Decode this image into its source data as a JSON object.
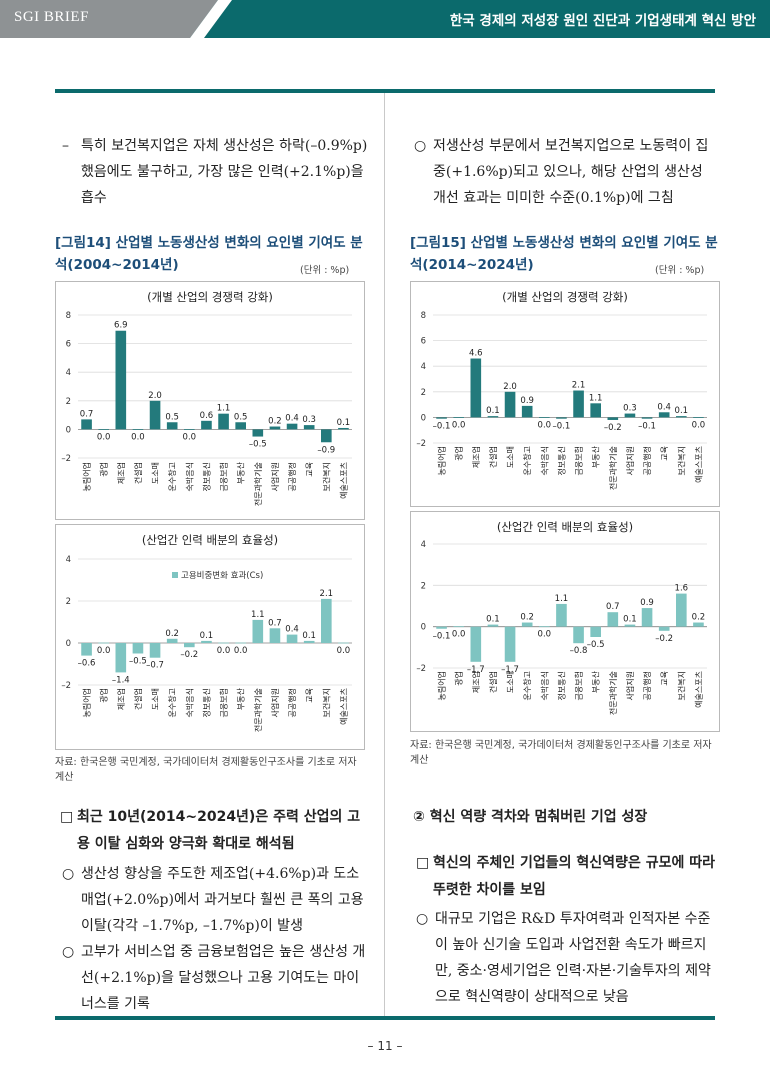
{
  "header": {
    "brand": "SGI BRIEF",
    "title": "한국 경제의 저성장 원인 진단과 기업생태계 혁신 방안"
  },
  "left": {
    "intro_marker": "–",
    "intro": "특히 보건복지업은 자체 생산성은 하락(–0.9%p) 했음에도 불구하고, 가장 많은 인력(+2.1%p)을 흡수",
    "figure_title": "[그림14] 산업별 노동생산성 변화의 요인별 기여도 분석(2004~2014년)",
    "unit": "(단위 : %p)",
    "source": "자료: 한국은행 국민계정, 국가데이터처 경제활동인구조사를 기초로 저자 계산",
    "section_marker": "□",
    "section": "최근 10년(2014~2024년)은 주력 산업의 고용 이탈 심화와 양극화 확대로 해석됨",
    "bullets": [
      {
        "marker": "○",
        "text": "생산성 향상을 주도한 제조업(+4.6%p)과 도소매업(+2.0%p)에서 과거보다 훨씬 큰 폭의 고용 이탈(각각 –1.7%p, –1.7%p)이 발생"
      },
      {
        "marker": "○",
        "text": "고부가 서비스업 중 금융보험업은 높은 생산성 개선(+2.1%p)을 달성했으나 고용 기여도는 마이너스를 기록"
      }
    ]
  },
  "right": {
    "intro_marker": "○",
    "intro": "저생산성 부문에서 보건복지업으로 노동력이 집중(+1.6%p)되고 있으나, 해당 산업의 생산성 개선 효과는 미미한 수준(0.1%p)에 그침",
    "figure_title": "[그림15] 산업별 노동생산성 변화의 요인별 기여도 분석(2014~2024년)",
    "unit": "(단위 : %p)",
    "source": "자료: 한국은행 국민계정, 국가데이터처 경제활동인구조사를 기초로 저자 계산",
    "section": "② 혁신 역량 격차와 멈춰버린 기업 성장",
    "sub_marker": "□",
    "sub": "혁신의 주체인 기업들의 혁신역량은 규모에 따라 뚜렷한 차이를 보임",
    "bullets": [
      {
        "marker": "○",
        "text": "대규모 기업은 R&D 투자여력과 인적자본 수준이 높아 신기술 도입과 사업전환 속도가 빠르지만, 중소·영세기업은 인력·자본·기술투자의 제약으로 혁신역량이 상대적으로 낮음"
      }
    ]
  },
  "page_number": "– 11 –",
  "colors": {
    "bar": "#237a7c",
    "bar_light": "#7ec4c1",
    "teal_dark": "#0b6a6c",
    "title_blue": "#1d4e79"
  },
  "chart_data": [
    {
      "id": "fig14-top",
      "type": "bar",
      "title": "(개별 산업의 경쟁력 강화)",
      "categories": [
        "농림어업",
        "광업",
        "제조업",
        "건설업",
        "도소매",
        "운수창고",
        "숙박음식",
        "정보통신",
        "금융보험",
        "부동산",
        "전문과학기술",
        "사업지원",
        "공공행정",
        "교육",
        "보건복지",
        "예술스포츠"
      ],
      "values": [
        0.7,
        0.0,
        6.9,
        0.0,
        2.0,
        0.5,
        0.0,
        0.6,
        1.1,
        0.5,
        -0.5,
        0.2,
        0.4,
        0.3,
        -0.9,
        0.1
      ],
      "labels": [
        "0.7",
        "0.0",
        "6.9",
        "0.0",
        "2.0",
        "0.5",
        "0.0",
        "0.6",
        "1.1",
        "0.5",
        "–0.5",
        "0.2",
        "0.4",
        "0.3",
        "–0.9",
        "0.1"
      ],
      "yticks": [
        "8",
        "6",
        "4",
        "2",
        "0",
        "–2"
      ],
      "ylim": [
        -2,
        8
      ],
      "color": "#237a7c"
    },
    {
      "id": "fig14-bottom",
      "type": "bar",
      "title": "(산업간 인력 배분의 효율성)",
      "legend": "고용비중변화 효과(Cs)",
      "categories": [
        "농림어업",
        "광업",
        "제조업",
        "건설업",
        "도소매",
        "운수창고",
        "숙박음식",
        "정보통신",
        "금융보험",
        "부동산",
        "전문과학기술",
        "사업지원",
        "공공행정",
        "교육",
        "보건복지",
        "예술스포츠"
      ],
      "values": [
        -0.6,
        0.0,
        -1.4,
        -0.5,
        -0.7,
        0.2,
        -0.2,
        0.1,
        0.0,
        0.0,
        1.1,
        0.7,
        0.4,
        0.1,
        2.1,
        0.0
      ],
      "labels": [
        "–0.6",
        "0.0",
        "–1.4",
        "–0.5",
        "–0.7",
        "0.2",
        "–0.2",
        "0.1",
        "0.0",
        "0.0",
        "1.1",
        "0.7",
        "0.4",
        "0.1",
        "2.1",
        "0.0"
      ],
      "yticks": [
        "4",
        "2",
        "0",
        "–2"
      ],
      "ylim": [
        -2,
        4
      ],
      "color": "#7ec4c1"
    },
    {
      "id": "fig15-top",
      "type": "bar",
      "title": "(개별 산업의 경쟁력 강화)",
      "categories": [
        "농림어업",
        "광업",
        "제조업",
        "건설업",
        "도소매",
        "운수창고",
        "숙박음식",
        "정보통신",
        "금융보험",
        "부동산",
        "전문과학기술",
        "사업지원",
        "공공행정",
        "교육",
        "보건복지",
        "예술스포츠"
      ],
      "values": [
        -0.1,
        0.0,
        4.6,
        0.1,
        2.0,
        0.9,
        0.0,
        -0.1,
        2.1,
        1.1,
        -0.2,
        0.3,
        -0.1,
        0.4,
        0.1,
        0.0
      ],
      "labels": [
        "–0.1",
        "0.0",
        "4.6",
        "0.1",
        "2.0",
        "0.9",
        "0.0",
        "–0.1",
        "2.1",
        "1.1",
        "–0.2",
        "0.3",
        "–0.1",
        "0.4",
        "0.1",
        "0.0"
      ],
      "yticks": [
        "8",
        "6",
        "4",
        "2",
        "0",
        "–2"
      ],
      "ylim": [
        -2,
        8
      ],
      "color": "#237a7c"
    },
    {
      "id": "fig15-bottom",
      "type": "bar",
      "title": "(산업간 인력 배분의 효율성)",
      "categories": [
        "농림어업",
        "광업",
        "제조업",
        "건설업",
        "도소매",
        "운수창고",
        "숙박음식",
        "정보통신",
        "금융보험",
        "부동산",
        "전문과학기술",
        "사업지원",
        "공공행정",
        "교육",
        "보건복지",
        "예술스포츠"
      ],
      "values": [
        -0.1,
        0.0,
        -1.7,
        0.1,
        -1.7,
        0.2,
        0.0,
        1.1,
        -0.8,
        -0.5,
        0.7,
        0.1,
        0.9,
        -0.2,
        1.6,
        0.2
      ],
      "labels": [
        "–0.1",
        "0.0",
        "–1.7",
        "0.1",
        "–1.7",
        "0.2",
        "0.0",
        "1.1",
        "–0.8",
        "–0.5",
        "0.7",
        "0.1",
        "0.9",
        "–0.2",
        "1.6",
        "0.2"
      ],
      "yticks": [
        "4",
        "2",
        "0",
        "–2"
      ],
      "ylim": [
        -2,
        4
      ],
      "color": "#7ec4c1"
    }
  ]
}
